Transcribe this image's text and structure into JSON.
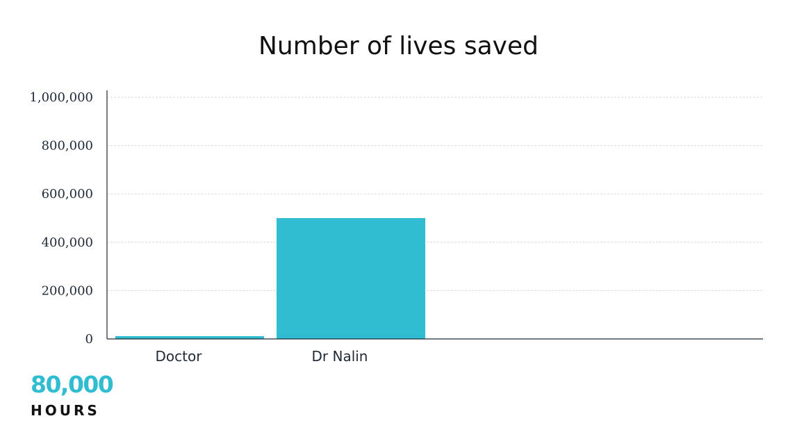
{
  "colors": {
    "bar": "#30bdd1",
    "text": "#1f2a36",
    "logo_accent": "#30bdd1",
    "logo_dark": "#111111"
  },
  "chart_data": {
    "type": "bar",
    "title": "Number of lives saved",
    "xlabel": "",
    "ylabel": "",
    "categories": [
      "Doctor",
      "Dr Nalin"
    ],
    "values": [
      10000,
      500000
    ],
    "ylim": [
      0,
      1000000
    ],
    "yticks": [
      0,
      200000,
      400000,
      600000,
      800000,
      1000000
    ],
    "ytick_labels": [
      "0",
      "200,000",
      "400,000",
      "600,000",
      "800,000",
      "1,000,000"
    ],
    "grid": true,
    "legend": "none"
  },
  "logo": {
    "number": "80,000",
    "word": "HOURS"
  }
}
